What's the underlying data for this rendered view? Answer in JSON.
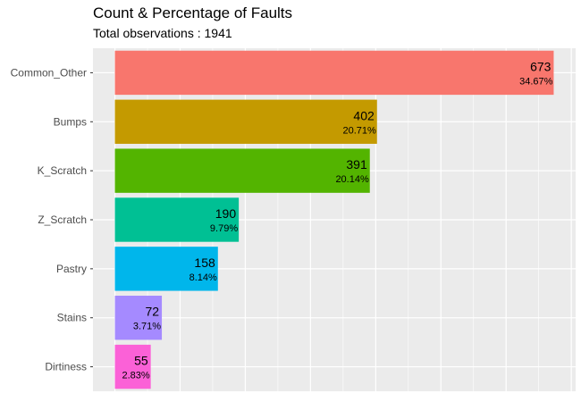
{
  "chart_data": {
    "type": "bar",
    "orientation": "horizontal",
    "title": "Count & Percentage of Faults",
    "subtitle": "Total observations : 1941",
    "xlabel": "",
    "ylabel": "",
    "categories": [
      "Common_Other",
      "Bumps",
      "K_Scratch",
      "Z_Scratch",
      "Pastry",
      "Stains",
      "Dirtiness"
    ],
    "values": [
      673,
      402,
      391,
      190,
      158,
      72,
      55
    ],
    "percent_labels": [
      "34.67%",
      "20.71%",
      "20.14%",
      "9.79%",
      "8.14%",
      "3.71%",
      "2.83%"
    ],
    "colors": [
      "#F8766D",
      "#C49A00",
      "#53B400",
      "#00C094",
      "#00B6EB",
      "#A58AFF",
      "#FB61D7"
    ],
    "xlim": [
      -33.65,
      706.65
    ],
    "grid": true,
    "legend": "none",
    "panel_background": "#EBEBEB",
    "grid_color": "#FFFFFF"
  }
}
